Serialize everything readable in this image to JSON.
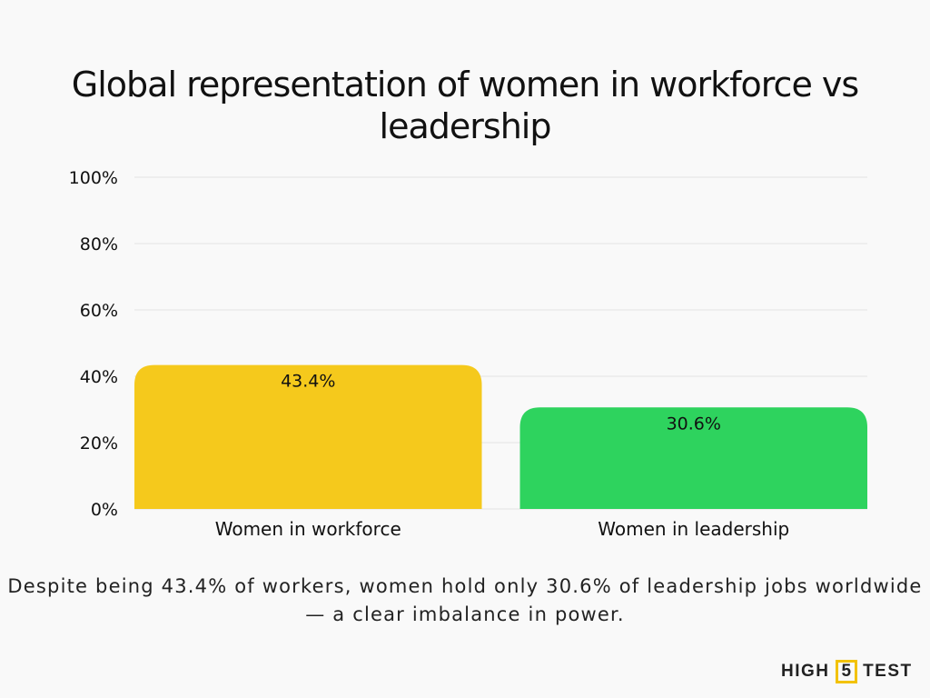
{
  "chart_data": {
    "type": "bar",
    "title": "Global representation of women in workforce vs leadership",
    "categories": [
      "Women in workforce",
      "Women in leadership"
    ],
    "values": [
      43.4,
      30.6
    ],
    "data_labels": [
      "43.4%",
      "30.6%"
    ],
    "colors": [
      "#f5c91c",
      "#2ed35e"
    ],
    "ylim": [
      0,
      100
    ],
    "yticks": [
      0,
      20,
      40,
      60,
      80,
      100
    ],
    "ytick_labels": [
      "0%",
      "20%",
      "40%",
      "60%",
      "80%",
      "100%"
    ],
    "xlabel": "",
    "ylabel": "",
    "grid": true
  },
  "caption": "Despite being 43.4% of workers, women hold only 30.6% of leadership jobs worldwide — a clear imbalance in power.",
  "logo": {
    "left": "HIGH",
    "mid": "5",
    "right": "TEST"
  }
}
